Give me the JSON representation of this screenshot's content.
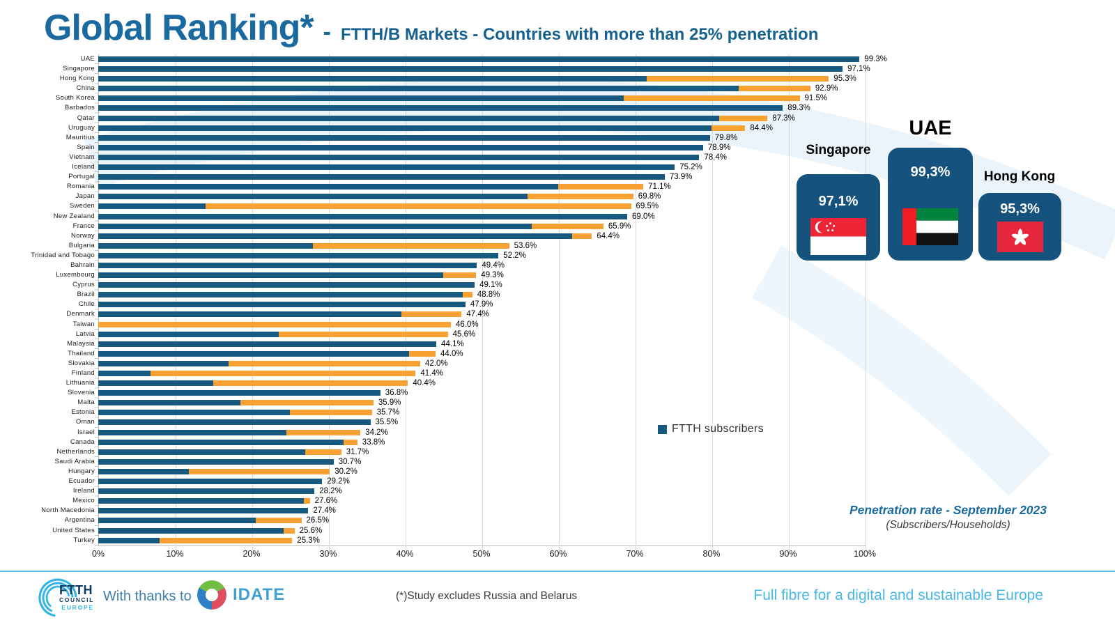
{
  "title": "Global Ranking*",
  "title_separator": "-",
  "subtitle": "FTTH/B Markets - Countries with more than 25% penetration",
  "legend": {
    "label": "FTTH subscribers"
  },
  "annotation": {
    "line1": "Penetration rate - September 2023",
    "line2": "(Subscribers/Households)"
  },
  "colors": {
    "bar_blue": "#175980",
    "bar_orange": "#f7a133",
    "accent_blue": "#1a699f",
    "card_blue": "#15527e",
    "grid": "#d9d9d9"
  },
  "chart_data": {
    "type": "bar",
    "orientation": "horizontal",
    "stacked": true,
    "title": "FTTH/B Markets - Countries with more than 25% penetration",
    "xlabel": "",
    "ylabel": "",
    "xlim": [
      0,
      100
    ],
    "grid": true,
    "x_ticks": [
      "0%",
      "10%",
      "20%",
      "30%",
      "40%",
      "50%",
      "60%",
      "70%",
      "80%",
      "90%",
      "100%"
    ],
    "series_legend": [
      {
        "name": "FTTH subscribers",
        "color": "#175980"
      }
    ],
    "note": "bars are stacked: blue = FTTH subscribers share, orange = remainder of penetration rate",
    "countries": [
      {
        "name": "UAE",
        "label": "99.3%",
        "ftth": 99.3,
        "other": 0
      },
      {
        "name": "Singapore",
        "label": "97.1%",
        "ftth": 97.1,
        "other": 0
      },
      {
        "name": "Hong Kong",
        "label": "95.3%",
        "ftth": 71.5,
        "other": 23.8
      },
      {
        "name": "China",
        "label": "92.9%",
        "ftth": 83.5,
        "other": 9.4
      },
      {
        "name": "South Korea",
        "label": "91.5%",
        "ftth": 68.5,
        "other": 23.0
      },
      {
        "name": "Barbados",
        "label": "89.3%",
        "ftth": 89.3,
        "other": 0
      },
      {
        "name": "Qatar",
        "label": "87.3%",
        "ftth": 81.0,
        "other": 6.3
      },
      {
        "name": "Uruguay",
        "label": "84.4%",
        "ftth": 80.0,
        "other": 4.4
      },
      {
        "name": "Mauritius",
        "label": "79.8%",
        "ftth": 79.8,
        "other": 0
      },
      {
        "name": "Spain",
        "label": "78.9%",
        "ftth": 78.9,
        "other": 0
      },
      {
        "name": "Vietnam",
        "label": "78.4%",
        "ftth": 78.4,
        "other": 0
      },
      {
        "name": "Iceland",
        "label": "75.2%",
        "ftth": 75.2,
        "other": 0
      },
      {
        "name": "Portugal",
        "label": "73.9%",
        "ftth": 73.9,
        "other": 0
      },
      {
        "name": "Romania",
        "label": "71.1%",
        "ftth": 60.0,
        "other": 11.1
      },
      {
        "name": "Japan",
        "label": "69.8%",
        "ftth": 56.0,
        "other": 13.8
      },
      {
        "name": "Sweden",
        "label": "69.5%",
        "ftth": 14.0,
        "other": 55.5
      },
      {
        "name": "New Zealand",
        "label": "69.0%",
        "ftth": 69.0,
        "other": 0
      },
      {
        "name": "France",
        "label": "65.9%",
        "ftth": 56.5,
        "other": 9.4
      },
      {
        "name": "Norway",
        "label": "64.4%",
        "ftth": 61.8,
        "other": 2.6
      },
      {
        "name": "Bulgaria",
        "label": "53.6%",
        "ftth": 28.0,
        "other": 25.6
      },
      {
        "name": "Trinidad and Tobago",
        "label": "52.2%",
        "ftth": 52.2,
        "other": 0
      },
      {
        "name": "Bahrain",
        "label": "49.4%",
        "ftth": 49.4,
        "other": 0
      },
      {
        "name": "Luxembourg",
        "label": "49.3%",
        "ftth": 45.0,
        "other": 4.3
      },
      {
        "name": "Cyprus",
        "label": "49.1%",
        "ftth": 49.1,
        "other": 0
      },
      {
        "name": "Brazil",
        "label": "48.8%",
        "ftth": 47.5,
        "other": 1.3
      },
      {
        "name": "Chile",
        "label": "47.9%",
        "ftth": 47.9,
        "other": 0
      },
      {
        "name": "Denmark",
        "label": "47.4%",
        "ftth": 39.5,
        "other": 7.9
      },
      {
        "name": "Taiwan",
        "label": "46.0%",
        "ftth": 0,
        "other": 46.0
      },
      {
        "name": "Latvia",
        "label": "45.6%",
        "ftth": 23.5,
        "other": 22.1
      },
      {
        "name": "Malaysia",
        "label": "44.1%",
        "ftth": 44.1,
        "other": 0
      },
      {
        "name": "Thailand",
        "label": "44.0%",
        "ftth": 40.5,
        "other": 3.5
      },
      {
        "name": "Slovakia",
        "label": "42.0%",
        "ftth": 17.0,
        "other": 25.0
      },
      {
        "name": "Finland",
        "label": "41.4%",
        "ftth": 6.8,
        "other": 34.6
      },
      {
        "name": "Lithuania",
        "label": "40.4%",
        "ftth": 15.0,
        "other": 25.4
      },
      {
        "name": "Slovenia",
        "label": "36.8%",
        "ftth": 36.8,
        "other": 0
      },
      {
        "name": "Malta",
        "label": "35.9%",
        "ftth": 18.5,
        "other": 17.4
      },
      {
        "name": "Estonia",
        "label": "35.7%",
        "ftth": 25.0,
        "other": 10.7
      },
      {
        "name": "Oman",
        "label": "35.5%",
        "ftth": 35.5,
        "other": 0
      },
      {
        "name": "Israel",
        "label": "34.2%",
        "ftth": 24.5,
        "other": 9.7
      },
      {
        "name": "Canada",
        "label": "33.8%",
        "ftth": 32.0,
        "other": 1.8
      },
      {
        "name": "Netherlands",
        "label": "31.7%",
        "ftth": 27.0,
        "other": 4.7
      },
      {
        "name": "Saudi Arabia",
        "label": "30.7%",
        "ftth": 30.7,
        "other": 0
      },
      {
        "name": "Hungary",
        "label": "30.2%",
        "ftth": 11.8,
        "other": 18.4
      },
      {
        "name": "Ecuador",
        "label": "29.2%",
        "ftth": 29.2,
        "other": 0
      },
      {
        "name": "Ireland",
        "label": "28.2%",
        "ftth": 28.2,
        "other": 0
      },
      {
        "name": "Mexico",
        "label": "27.6%",
        "ftth": 26.8,
        "other": 0.8
      },
      {
        "name": "North Macedonia",
        "label": "27.4%",
        "ftth": 27.4,
        "other": 0
      },
      {
        "name": "Argentina",
        "label": "26.5%",
        "ftth": 20.5,
        "other": 6.0
      },
      {
        "name": "United States",
        "label": "25.6%",
        "ftth": 24.2,
        "other": 1.4
      },
      {
        "name": "Turkey",
        "label": "25.3%",
        "ftth": 8.0,
        "other": 17.3
      }
    ]
  },
  "podium": {
    "cards": [
      {
        "country": "Singapore",
        "value": "97,1%"
      },
      {
        "country": "UAE",
        "value": "99,3%"
      },
      {
        "country": "Hong Kong",
        "value": "95,3%"
      }
    ]
  },
  "footer": {
    "logo": {
      "line1": "FTTH",
      "line2": "COUNCIL",
      "line3": "EUROPE"
    },
    "thanks": "With thanks to",
    "idate": "IDATE",
    "note": "(*)Study excludes Russia and Belarus",
    "tagline": "Full fibre for a digital and sustainable Europe"
  }
}
